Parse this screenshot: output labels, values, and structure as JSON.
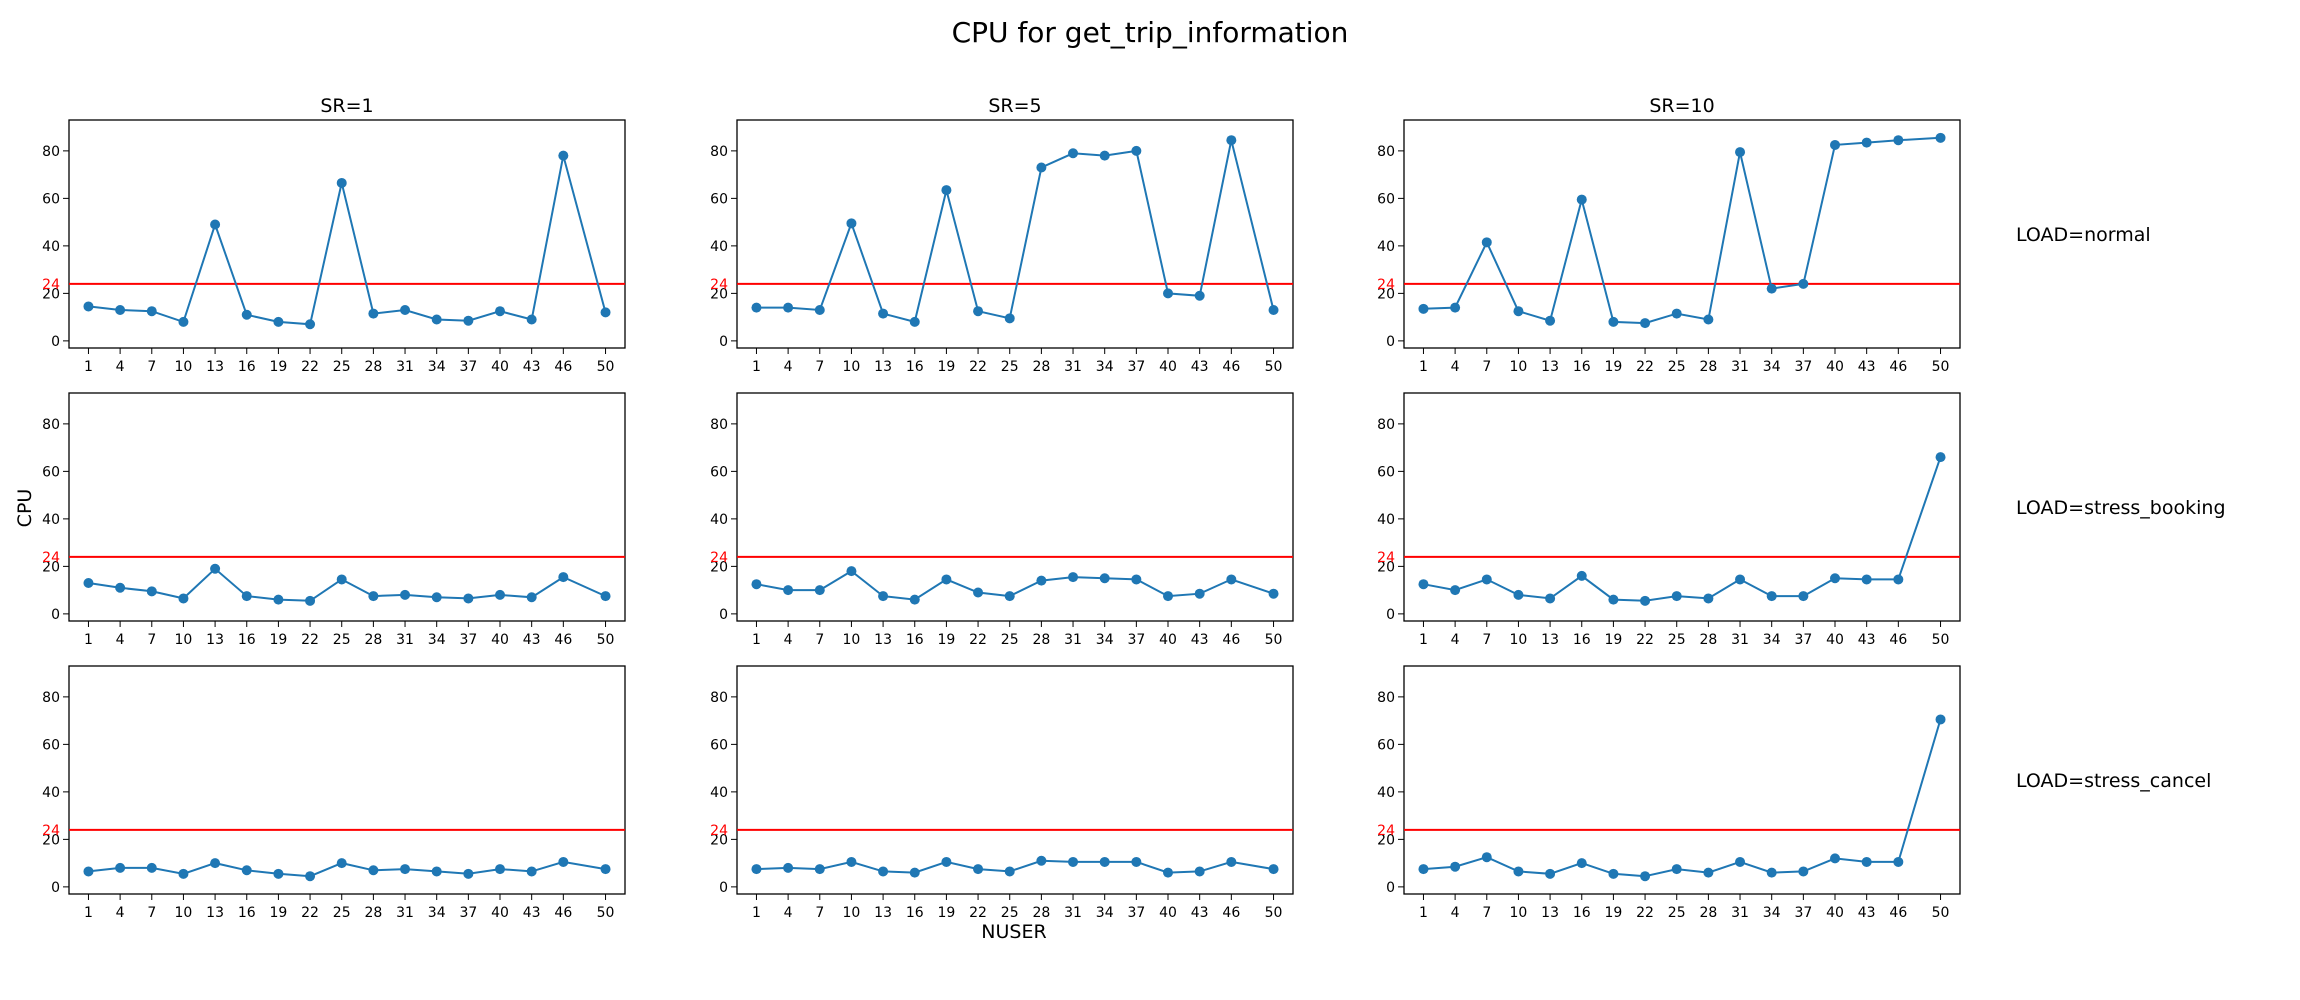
{
  "figure": {
    "title": "CPU for get_trip_information",
    "xlabel": "NUSER",
    "ylabel": "CPU"
  },
  "colors": {
    "series": "#1f77b4",
    "threshold": "#ff0000",
    "axis": "#000000"
  },
  "chart_data": {
    "type": "line",
    "grid": false,
    "x": [
      1,
      4,
      7,
      10,
      13,
      16,
      19,
      22,
      25,
      28,
      31,
      34,
      37,
      40,
      43,
      46,
      50
    ],
    "ylim": [
      -3,
      93
    ],
    "yticks": [
      0,
      20,
      40,
      60,
      80
    ],
    "threshold": {
      "value": 24,
      "label": "24"
    },
    "columns": [
      "SR=1",
      "SR=5",
      "SR=10"
    ],
    "rows": [
      "LOAD=normal",
      "LOAD=stress_booking",
      "LOAD=stress_cancel"
    ],
    "panels": [
      {
        "row": 0,
        "col": 0,
        "y": [
          14.5,
          13,
          12.5,
          8,
          49,
          11,
          8,
          7,
          66.5,
          11.5,
          13,
          9,
          8.5,
          12.5,
          9,
          78,
          12
        ]
      },
      {
        "row": 0,
        "col": 1,
        "y": [
          14,
          14,
          13,
          49.5,
          11.5,
          8,
          63.5,
          12.5,
          9.5,
          73,
          79,
          78,
          80,
          20,
          19,
          84.5,
          13
        ]
      },
      {
        "row": 0,
        "col": 2,
        "y": [
          13.5,
          14,
          41.5,
          12.5,
          8.5,
          59.5,
          8,
          7.5,
          11.5,
          9,
          79.5,
          22,
          24,
          82.5,
          83.5,
          84.5,
          85.5
        ]
      },
      {
        "row": 1,
        "col": 0,
        "y": [
          13,
          11,
          9.5,
          6.5,
          19,
          7.5,
          6,
          5.5,
          14.5,
          7.5,
          8,
          7,
          6.5,
          8,
          7,
          15.5,
          7.5
        ]
      },
      {
        "row": 1,
        "col": 1,
        "y": [
          12.5,
          10,
          10,
          18,
          7.5,
          6,
          14.5,
          9,
          7.5,
          14,
          15.5,
          15,
          14.5,
          7.5,
          8.5,
          14.5,
          8.5
        ]
      },
      {
        "row": 1,
        "col": 2,
        "y": [
          12.5,
          10,
          14.5,
          8,
          6.5,
          16,
          6,
          5.5,
          7.5,
          6.5,
          14.5,
          7.5,
          7.5,
          15,
          14.5,
          14.5,
          66
        ]
      },
      {
        "row": 2,
        "col": 0,
        "y": [
          6.5,
          8,
          8,
          5.5,
          10,
          7,
          5.5,
          4.5,
          10,
          7,
          7.5,
          6.5,
          5.5,
          7.5,
          6.5,
          10.5,
          7.5
        ]
      },
      {
        "row": 2,
        "col": 1,
        "y": [
          7.5,
          8,
          7.5,
          10.5,
          6.5,
          6,
          10.5,
          7.5,
          6.5,
          11,
          10.5,
          10.5,
          10.5,
          6,
          6.5,
          10.5,
          7.5
        ]
      },
      {
        "row": 2,
        "col": 2,
        "y": [
          7.5,
          8.5,
          12.5,
          6.5,
          5.5,
          10,
          5.5,
          4.5,
          7.5,
          6,
          10.5,
          6,
          6.5,
          12,
          10.5,
          10.5,
          70.5
        ]
      }
    ]
  }
}
